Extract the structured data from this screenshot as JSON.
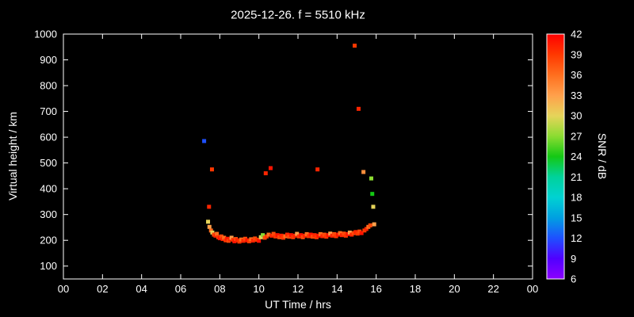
{
  "chart": {
    "title": "2025-12-26. f = 5510 kHz",
    "xlabel": "UT Time / hrs",
    "ylabel": "Virtual height / km",
    "colorbar_label": "SNR / dB"
  },
  "style": {
    "background": "#000000",
    "foreground": "#ffffff"
  },
  "chart_data": {
    "type": "scatter",
    "title": "2025-12-26. f = 5510 kHz",
    "xlabel": "UT Time / hrs",
    "ylabel": "Virtual height / km",
    "x_range": [
      0,
      24
    ],
    "y_range": [
      50,
      1000
    ],
    "x_tick_values": [
      0,
      2,
      4,
      6,
      8,
      10,
      12,
      14,
      16,
      18,
      20,
      22,
      24
    ],
    "x_tick_labels": [
      "00",
      "02",
      "04",
      "06",
      "08",
      "10",
      "12",
      "14",
      "16",
      "18",
      "20",
      "22",
      "00"
    ],
    "y_tick_values": [
      100,
      200,
      300,
      400,
      500,
      600,
      700,
      800,
      900,
      1000
    ],
    "grid": false,
    "marker": "square",
    "colorbar": {
      "label": "SNR / dB",
      "min": 6,
      "max": 42,
      "ticks": [
        6,
        9,
        12,
        15,
        18,
        21,
        24,
        27,
        30,
        33,
        36,
        39,
        42
      ],
      "stops": [
        [
          6,
          "#8c00ff"
        ],
        [
          9,
          "#5000ff"
        ],
        [
          12,
          "#1e50ff"
        ],
        [
          15,
          "#00a0e1"
        ],
        [
          18,
          "#00d2d2"
        ],
        [
          21,
          "#00d29b"
        ],
        [
          24,
          "#14c814"
        ],
        [
          27,
          "#8cdc32"
        ],
        [
          30,
          "#e6d45a"
        ],
        [
          33,
          "#ffa04b"
        ],
        [
          36,
          "#ff6e1e"
        ],
        [
          39,
          "#ff3800"
        ],
        [
          42,
          "#ff0000"
        ]
      ]
    },
    "points_format": [
      "ut_hours",
      "virtual_height_km",
      "snr_db"
    ],
    "points": [
      [
        7.2,
        585,
        12
      ],
      [
        7.4,
        272,
        30
      ],
      [
        7.45,
        330,
        40
      ],
      [
        7.47,
        252,
        33
      ],
      [
        7.55,
        238,
        36
      ],
      [
        7.6,
        475,
        39
      ],
      [
        7.62,
        230,
        30
      ],
      [
        7.7,
        222,
        38
      ],
      [
        7.78,
        218,
        40
      ],
      [
        7.85,
        225,
        36
      ],
      [
        7.92,
        212,
        39
      ],
      [
        8.0,
        208,
        41
      ],
      [
        8.08,
        215,
        38
      ],
      [
        8.15,
        205,
        40
      ],
      [
        8.22,
        210,
        36
      ],
      [
        8.3,
        200,
        39
      ],
      [
        8.38,
        206,
        41
      ],
      [
        8.45,
        198,
        38
      ],
      [
        8.52,
        204,
        40
      ],
      [
        8.6,
        210,
        33
      ],
      [
        8.68,
        202,
        39
      ],
      [
        8.75,
        196,
        41
      ],
      [
        8.82,
        205,
        38
      ],
      [
        8.9,
        200,
        40
      ],
      [
        9.0,
        195,
        39
      ],
      [
        9.1,
        203,
        36
      ],
      [
        9.2,
        198,
        40
      ],
      [
        9.3,
        206,
        38
      ],
      [
        9.4,
        200,
        41
      ],
      [
        9.5,
        196,
        39
      ],
      [
        9.6,
        204,
        36
      ],
      [
        9.7,
        199,
        40
      ],
      [
        9.8,
        207,
        38
      ],
      [
        9.9,
        202,
        39
      ],
      [
        10.0,
        198,
        41
      ],
      [
        10.1,
        212,
        30
      ],
      [
        10.2,
        220,
        27
      ],
      [
        10.3,
        210,
        38
      ],
      [
        10.35,
        460,
        40
      ],
      [
        10.4,
        215,
        39
      ],
      [
        10.5,
        222,
        36
      ],
      [
        10.6,
        480,
        41
      ],
      [
        10.65,
        218,
        40
      ],
      [
        10.75,
        225,
        38
      ],
      [
        10.85,
        215,
        39
      ],
      [
        10.95,
        220,
        41
      ],
      [
        11.05,
        212,
        38
      ],
      [
        11.15,
        218,
        40
      ],
      [
        11.25,
        210,
        39
      ],
      [
        11.35,
        216,
        36
      ],
      [
        11.45,
        222,
        40
      ],
      [
        11.55,
        214,
        38
      ],
      [
        11.65,
        220,
        41
      ],
      [
        11.75,
        212,
        39
      ],
      [
        11.85,
        218,
        40
      ],
      [
        11.95,
        225,
        33
      ],
      [
        12.05,
        215,
        39
      ],
      [
        12.15,
        220,
        41
      ],
      [
        12.25,
        212,
        38
      ],
      [
        12.35,
        218,
        40
      ],
      [
        12.45,
        224,
        36
      ],
      [
        12.55,
        216,
        39
      ],
      [
        12.65,
        222,
        41
      ],
      [
        12.75,
        214,
        38
      ],
      [
        12.85,
        220,
        40
      ],
      [
        12.95,
        212,
        39
      ],
      [
        13.0,
        475,
        40
      ],
      [
        13.05,
        218,
        41
      ],
      [
        13.15,
        224,
        36
      ],
      [
        13.25,
        216,
        40
      ],
      [
        13.35,
        222,
        38
      ],
      [
        13.45,
        214,
        39
      ],
      [
        13.55,
        220,
        41
      ],
      [
        13.65,
        226,
        33
      ],
      [
        13.75,
        218,
        40
      ],
      [
        13.85,
        224,
        38
      ],
      [
        13.95,
        216,
        39
      ],
      [
        14.05,
        222,
        41
      ],
      [
        14.15,
        228,
        36
      ],
      [
        14.25,
        220,
        40
      ],
      [
        14.35,
        226,
        38
      ],
      [
        14.45,
        218,
        39
      ],
      [
        14.55,
        224,
        41
      ],
      [
        14.65,
        230,
        33
      ],
      [
        14.75,
        222,
        40
      ],
      [
        14.85,
        228,
        38
      ],
      [
        14.9,
        955,
        39
      ],
      [
        14.95,
        232,
        40
      ],
      [
        15.05,
        226,
        39
      ],
      [
        15.1,
        710,
        40
      ],
      [
        15.15,
        234,
        38
      ],
      [
        15.25,
        228,
        41
      ],
      [
        15.35,
        465,
        34
      ],
      [
        15.4,
        238,
        39
      ],
      [
        15.5,
        244,
        40
      ],
      [
        15.6,
        252,
        36
      ],
      [
        15.7,
        258,
        38
      ],
      [
        15.75,
        440,
        27
      ],
      [
        15.8,
        380,
        24
      ],
      [
        15.85,
        330,
        30
      ],
      [
        15.9,
        262,
        33
      ]
    ]
  }
}
